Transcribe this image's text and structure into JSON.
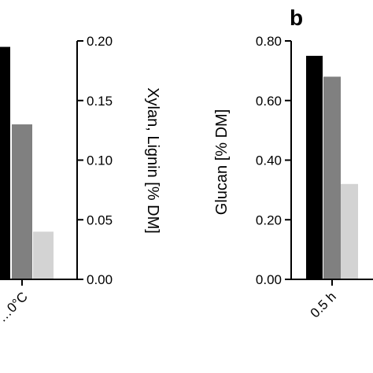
{
  "chart_data": [
    {
      "type": "bar",
      "panel_label": "",
      "ylabel": "Xylan, Lignin [% DM]",
      "axis_side": "right",
      "ylim": [
        0,
        0.2
      ],
      "yticks": [
        "0.00",
        "0.05",
        "0.10",
        "0.15",
        "0.20"
      ],
      "categories": [
        "…0°C"
      ],
      "series": [
        {
          "color": "#000000",
          "values": [
            0.195
          ]
        },
        {
          "color": "#808080",
          "values": [
            0.13
          ]
        },
        {
          "color": "#d3d3d3",
          "values": [
            0.04
          ]
        }
      ],
      "grid": false,
      "legend": "none"
    },
    {
      "type": "bar",
      "panel_label": "b",
      "ylabel": "Glucan [% DM]",
      "axis_side": "left",
      "ylim": [
        0,
        0.8
      ],
      "yticks": [
        "0.00",
        "0.20",
        "0.40",
        "0.60",
        "0.80"
      ],
      "categories": [
        "0.5 h"
      ],
      "series": [
        {
          "color": "#000000",
          "values": [
            0.75
          ]
        },
        {
          "color": "#808080",
          "values": [
            0.68
          ]
        },
        {
          "color": "#d3d3d3",
          "values": [
            0.32
          ]
        }
      ],
      "grid": false,
      "legend": "none"
    }
  ]
}
